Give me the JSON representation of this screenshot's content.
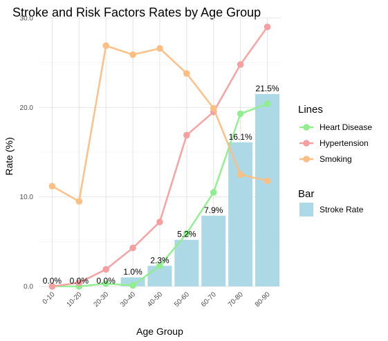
{
  "chart_data": {
    "type": "bar",
    "title": "Stroke and Risk Factors Rates by Age Group",
    "xlabel": "Age Group",
    "ylabel": "Rate (%)",
    "ylim": [
      0,
      30
    ],
    "yticks": [
      "0.0",
      "10.0",
      "20.0",
      "30.0"
    ],
    "categories": [
      "0-10",
      "10-20",
      "20-30",
      "30-40",
      "40-50",
      "50-60",
      "60-70",
      "70-80",
      "80-90"
    ],
    "bar": {
      "name": "Stroke Rate",
      "color": "#add8e6",
      "values": [
        0.0,
        0.0,
        0.0,
        1.0,
        2.3,
        5.2,
        7.9,
        16.1,
        21.5
      ],
      "labels": [
        "0.0%",
        "0.0%",
        "0.0%",
        "1.0%",
        "2.3%",
        "5.2%",
        "7.9%",
        "16.1%",
        "21.5%"
      ]
    },
    "series": [
      {
        "name": "Heart Disease",
        "type": "line",
        "color": "#90ee90",
        "values": [
          0.0,
          0.0,
          0.3,
          0.1,
          2.3,
          5.9,
          10.5,
          19.3,
          20.4
        ]
      },
      {
        "name": "Hypertension",
        "type": "line",
        "color": "#f4a0a0",
        "values": [
          0.0,
          0.4,
          1.9,
          4.3,
          7.2,
          16.9,
          19.5,
          24.8,
          29.0
        ]
      },
      {
        "name": "Smoking",
        "type": "line",
        "color": "#fbbf84",
        "values": [
          11.2,
          9.5,
          26.9,
          25.9,
          26.6,
          23.8,
          19.9,
          12.5,
          11.8
        ]
      }
    ],
    "legend": {
      "lines_title": "Lines",
      "bar_title": "Bar",
      "placement": "right"
    },
    "grid": true
  }
}
